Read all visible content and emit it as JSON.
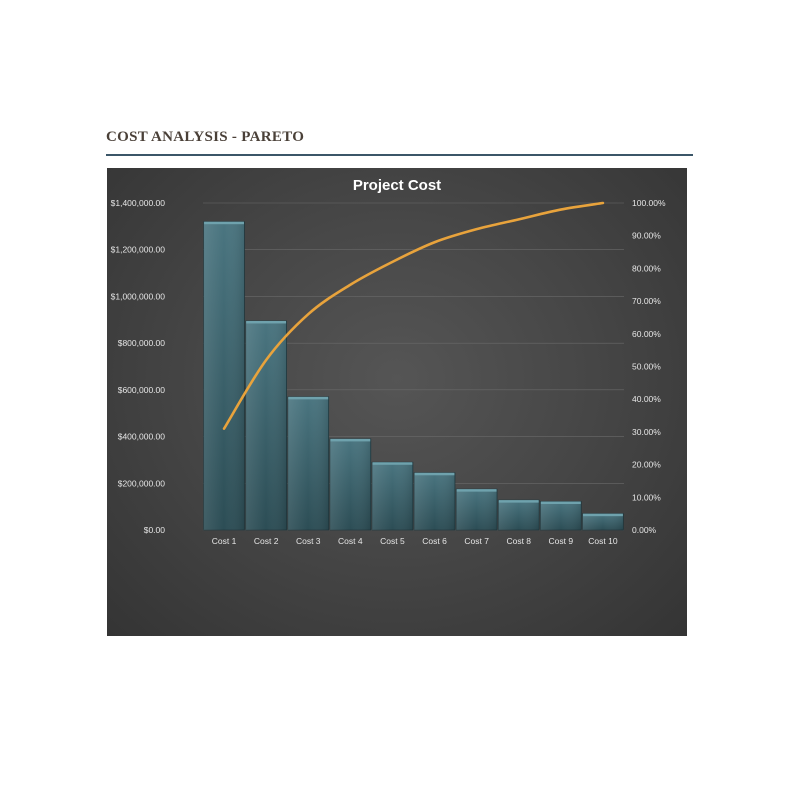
{
  "page": {
    "title": "COST ANALYSIS - PARETO"
  },
  "colors": {
    "bar_fill_top": "#4a7580",
    "bar_fill_bottom": "#2c4d55",
    "bar_edge": "#6fa2ad",
    "line": "#e8a33c",
    "panel": "#474747",
    "rule": "#3b5668"
  },
  "chart_data": {
    "type": "bar",
    "title": "Project Cost",
    "categories": [
      "Cost 1",
      "Cost 2",
      "Cost 3",
      "Cost 4",
      "Cost 5",
      "Cost 6",
      "Cost 7",
      "Cost 8",
      "Cost 9",
      "Cost 10"
    ],
    "series": [
      {
        "type": "bar",
        "axis": "left",
        "values": [
          1320000,
          895000,
          570000,
          390000,
          290000,
          245000,
          175000,
          128000,
          122000,
          70000
        ]
      },
      {
        "type": "line",
        "axis": "right",
        "values": [
          0.31,
          0.52,
          0.66,
          0.75,
          0.82,
          0.88,
          0.92,
          0.95,
          0.98,
          1.0
        ]
      }
    ],
    "y_left": {
      "range": [
        0,
        1400000
      ],
      "ticks": [
        "$0.00",
        "$200,000.00",
        "$400,000.00",
        "$600,000.00",
        "$800,000.00",
        "$1,000,000.00",
        "$1,200,000.00",
        "$1,400,000.00"
      ]
    },
    "y_right": {
      "range": [
        0,
        1
      ],
      "ticks": [
        "0.00%",
        "10.00%",
        "20.00%",
        "30.00%",
        "40.00%",
        "50.00%",
        "60.00%",
        "70.00%",
        "80.00%",
        "90.00%",
        "100.00%"
      ]
    },
    "grid": true,
    "legend": "none"
  }
}
